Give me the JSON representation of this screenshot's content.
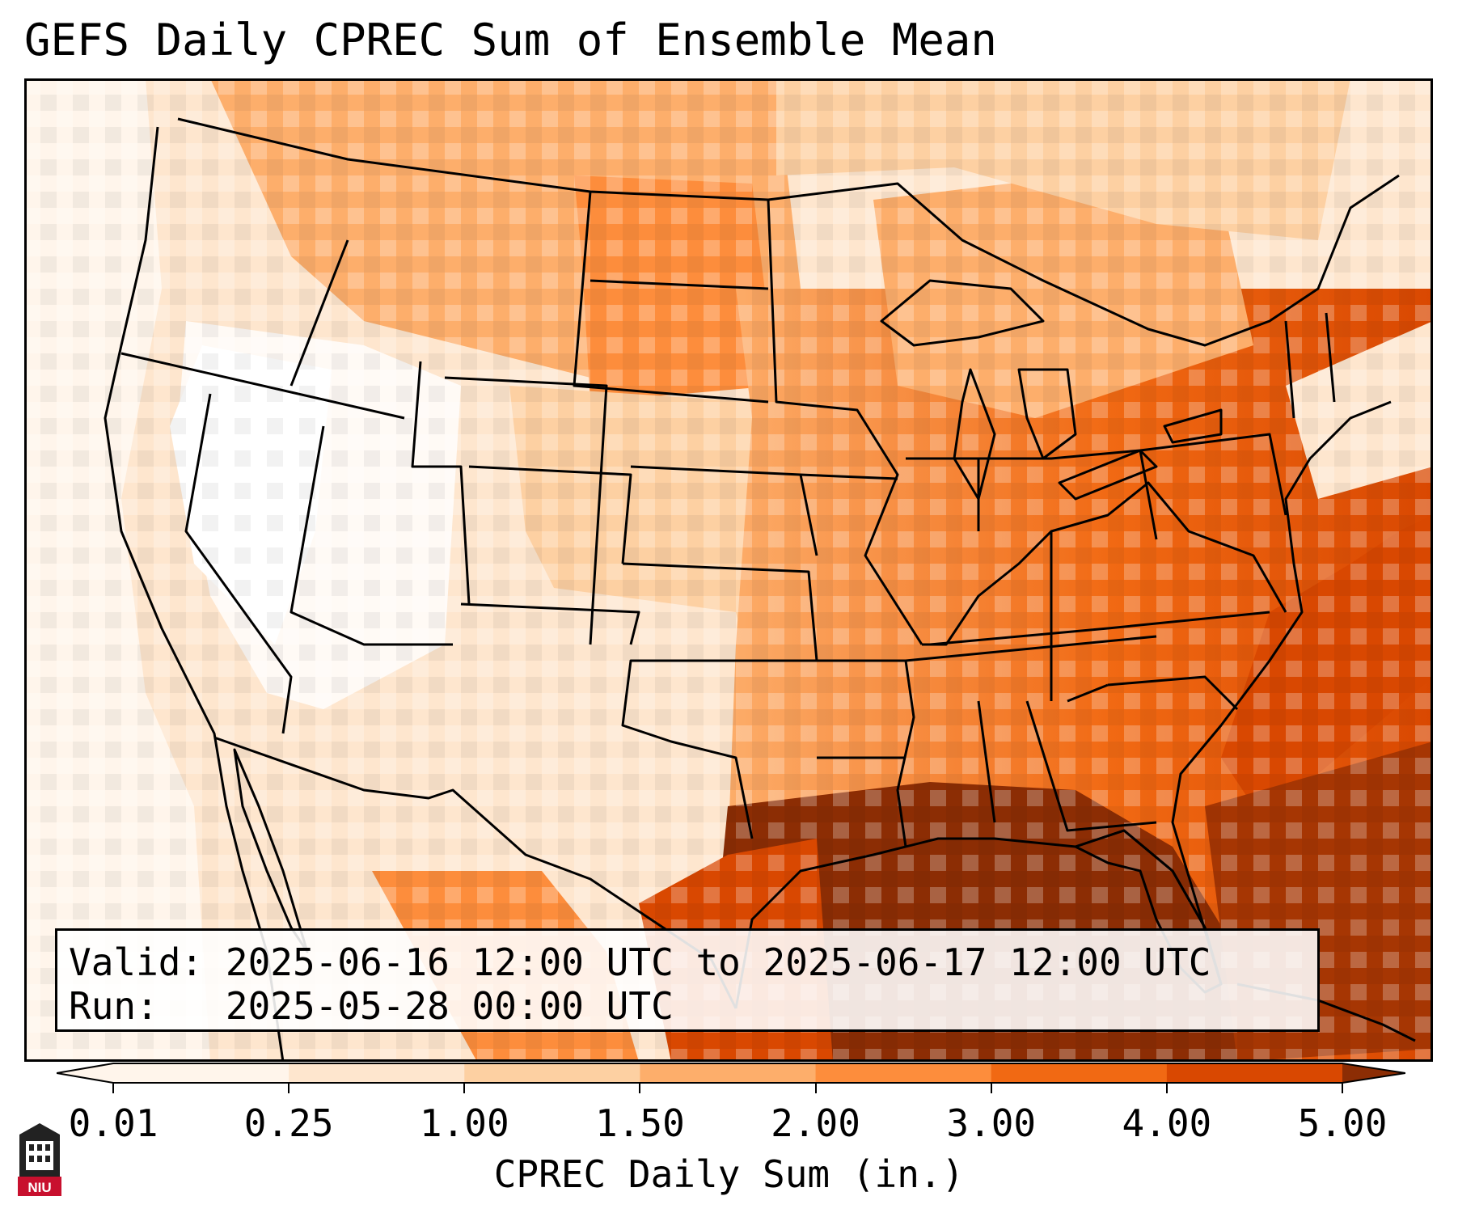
{
  "title": "GEFS Daily CPREC Sum of Ensemble Mean",
  "valid_label": "Valid:",
  "valid_value": "2025-06-16 12:00 UTC to 2025-06-17 12:00 UTC",
  "run_label": "Run:",
  "run_value": "2025-05-28 00:00 UTC",
  "colorbar": {
    "title": "CPREC Daily Sum (in.)",
    "ticks": [
      "0.01",
      "0.25",
      "1.00",
      "1.50",
      "2.00",
      "3.00",
      "4.00",
      "5.00"
    ],
    "colors": [
      "#fff5eb",
      "#fee6ce",
      "#fdd0a2",
      "#fdae6b",
      "#fd8d3c",
      "#f16913",
      "#d94801",
      "#8c2d04"
    ]
  },
  "logo_text": "NIU",
  "colors": {
    "frame": "#000000",
    "state_lines": "#000000"
  }
}
